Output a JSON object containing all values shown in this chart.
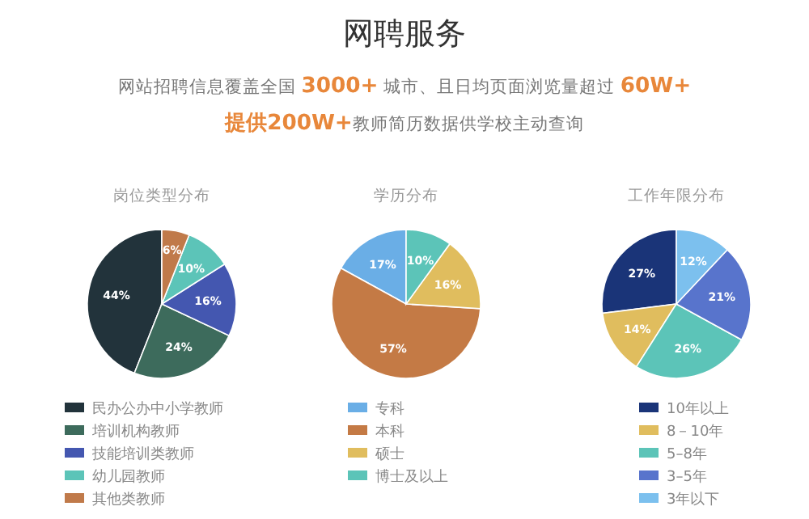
{
  "chart_data": [
    {
      "type": "pie",
      "title": "岗位类型分布",
      "annotations": [
        "网聘服务",
        "网站招聘信息覆盖全国 **3000+** 城市、且日均页面浏览量超过 **60W+**",
        "**提供200W+**教师简历数据供学校主动查询"
      ],
      "categories": [
        "民办公办中小学教师",
        "培训机构教师",
        "技能培训类教师",
        "幼儿园教师",
        "其他类教师"
      ],
      "values": [
        44,
        24,
        16,
        10,
        6
      ],
      "value_labels": [
        "44%",
        "24%",
        "16%",
        "10%",
        "6%"
      ],
      "colors": [
        "#22333b",
        "#3d6b5c",
        "#4457b0",
        "#5cc4b8",
        "#c07a4a"
      ],
      "legend": "bottom"
    },
    {
      "type": "pie",
      "title": "学历分布",
      "categories": [
        "专科",
        "本科",
        "硕士",
        "博士及以上"
      ],
      "values": [
        17,
        57,
        16,
        10
      ],
      "value_labels": [
        "17%",
        "57%",
        "16%",
        "10%"
      ],
      "colors": [
        "#6aaee6",
        "#c47a45",
        "#e0bd5e",
        "#5cc4b8"
      ],
      "legend": "bottom"
    },
    {
      "type": "pie",
      "title": "工作年限分布",
      "categories": [
        "10年以上",
        "8－10年",
        "5–8年",
        "3–5年",
        "3年以下"
      ],
      "values": [
        27,
        14,
        26,
        21,
        12
      ],
      "value_labels": [
        "27%",
        "14%",
        "26%",
        "21%",
        "12%"
      ],
      "colors": [
        "#1a3478",
        "#e0bd5e",
        "#5cc4b8",
        "#5874cc",
        "#7cc0ee"
      ],
      "legend": "bottom"
    }
  ]
}
